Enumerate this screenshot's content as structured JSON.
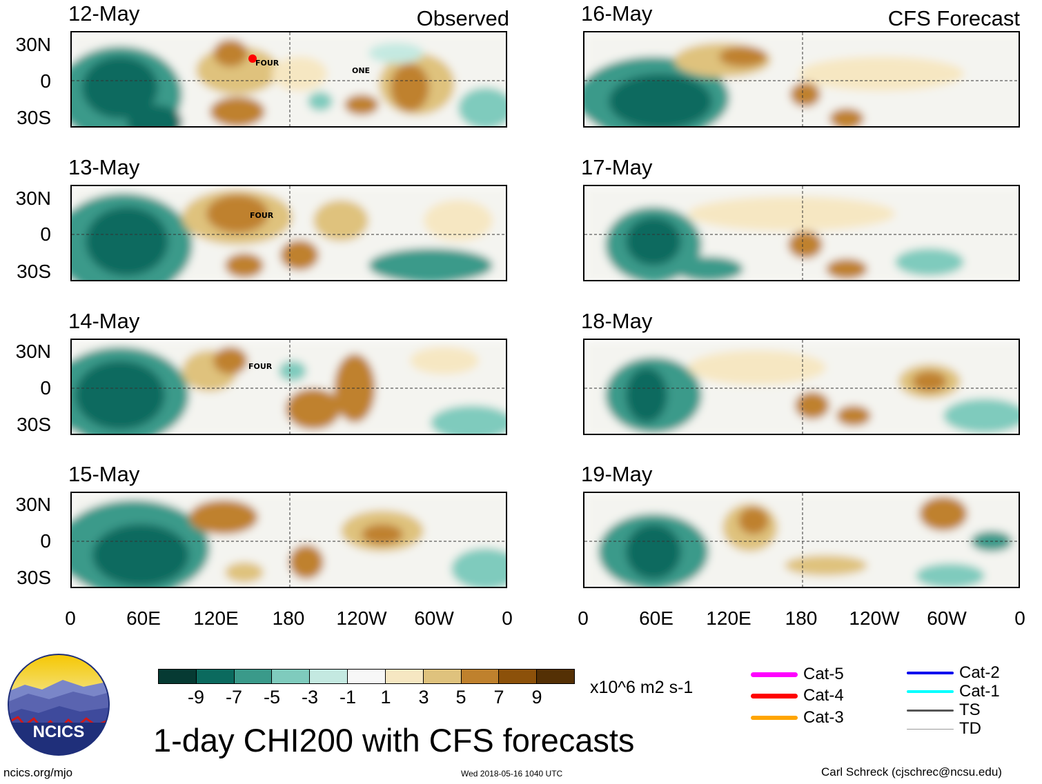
{
  "columns": {
    "left_title": "Observed",
    "right_title": "CFS Forecast"
  },
  "panels": [
    {
      "date": "12-May",
      "storms": [
        "FOUR",
        "ONE"
      ]
    },
    {
      "date": "13-May",
      "storms": [
        "FOUR"
      ]
    },
    {
      "date": "14-May",
      "storms": [
        "FOUR"
      ]
    },
    {
      "date": "15-May",
      "storms": []
    },
    {
      "date": "16-May",
      "storms": []
    },
    {
      "date": "17-May",
      "storms": []
    },
    {
      "date": "18-May",
      "storms": []
    },
    {
      "date": "19-May",
      "storms": []
    }
  ],
  "lat_labels": [
    "30N",
    "0",
    "30S"
  ],
  "lon_labels": [
    "0",
    "60E",
    "120E",
    "180",
    "120W",
    "60W",
    "0"
  ],
  "colorbar": {
    "colors": [
      "#063a33",
      "#0b6a5e",
      "#3a9a8a",
      "#7fcbbd",
      "#c4e9e1",
      "#f7f7f7",
      "#f6e7c2",
      "#dfc27d",
      "#bf812d",
      "#8c510a",
      "#543005"
    ],
    "labels": [
      "-9",
      "-7",
      "-5",
      "-3",
      "-1",
      "1",
      "3",
      "5",
      "7",
      "9"
    ],
    "units": "x10^6 m2 s-1"
  },
  "title": "1-day CHI200 with CFS forecasts",
  "logo_text": "NCICS",
  "legend": [
    {
      "label": "Cat-5",
      "color": "#ff00ff"
    },
    {
      "label": "Cat-4",
      "color": "#ff0000"
    },
    {
      "label": "Cat-3",
      "color": "#ffa500"
    },
    {
      "label": "Cat-2",
      "color": "#0000ee"
    },
    {
      "label": "Cat-1",
      "color": "#00ffff"
    },
    {
      "label": "TS",
      "color": "#555555"
    },
    {
      "label": "TD",
      "color": "#999999"
    }
  ],
  "footer": {
    "website": "ncics.org/mjo",
    "timestamp": "Wed 2018-05-16 1040 UTC",
    "author": "Carl Schreck (cjschrec@ncsu.edu)"
  }
}
